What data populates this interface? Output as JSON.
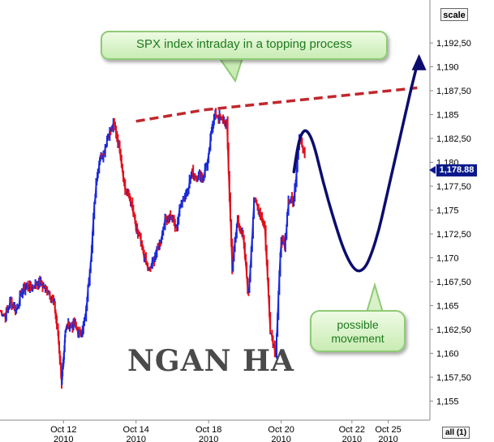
{
  "chart_data": {
    "type": "line",
    "title": "",
    "xlabel": "",
    "ylabel": "",
    "ylim": [
      1153,
      1197
    ],
    "grid": false,
    "y_ticks": [
      1155,
      1157.5,
      1160,
      1162.5,
      1165,
      1167.5,
      1170,
      1172.5,
      1175,
      1177.5,
      1180,
      1182.5,
      1185,
      1187.5,
      1190,
      1192.5
    ],
    "y_tick_labels": [
      "1,155",
      "1,157,50",
      "1,160",
      "1,162,50",
      "1,165",
      "1,167,50",
      "1,170",
      "1,172,50",
      "1,175",
      "1,177,50",
      "1,180",
      "1,182,50",
      "1,185",
      "1,187,50",
      "1,190",
      "1,192,50"
    ],
    "x_ticks": [
      {
        "label": "Oct 12",
        "year": "2010",
        "pos": 1
      },
      {
        "label": "Oct 14",
        "year": "2010",
        "pos": 3
      },
      {
        "label": "Oct 18",
        "year": "2010",
        "pos": 5
      },
      {
        "label": "Oct 20",
        "year": "2010",
        "pos": 7
      },
      {
        "label": "Oct 22",
        "year": "2010",
        "pos": 8.95
      },
      {
        "label": "Oct 25",
        "year": "2010",
        "pos": 9.95
      }
    ],
    "x_range": [
      -0.75,
      11.1
    ],
    "series": [
      {
        "x": [
          -0.75,
          -0.6,
          -0.45,
          -0.3,
          -0.15,
          0,
          0.15,
          0.3,
          0.45,
          0.6,
          0.75,
          0.85,
          0.95,
          1.0,
          1.05,
          1.15,
          1.3,
          1.45,
          1.6,
          1.75,
          1.9,
          2.0,
          2.1,
          2.25,
          2.4,
          2.55,
          2.7,
          2.85,
          3.0,
          3.1,
          3.2,
          3.35,
          3.5,
          3.65,
          3.8,
          3.95,
          4.1,
          4.25,
          4.4,
          4.55,
          4.7,
          4.85,
          5.0,
          5.1,
          5.2,
          5.35,
          5.5,
          5.65,
          5.8,
          5.95,
          6.1,
          6.25,
          6.4,
          6.55,
          6.7,
          6.85,
          7.0,
          7.1,
          7.2,
          7.35,
          7.5,
          7.65
        ],
        "y": [
          1164.5,
          1164,
          1165.5,
          1164.5,
          1166.5,
          1167,
          1167,
          1167.5,
          1167,
          1166.5,
          1165,
          1162,
          1157,
          1159,
          1162.5,
          1163,
          1163,
          1162,
          1163.5,
          1170,
          1178,
          1180.5,
          1181,
          1183,
          1184,
          1181.5,
          1177,
          1176,
          1173,
          1172,
          1170.5,
          1168.5,
          1170,
          1171.5,
          1174,
          1174.5,
          1173,
          1176,
          1177,
          1179,
          1178.5,
          1178.5,
          1180.5,
          1184,
          1185,
          1184.5,
          1184,
          1169,
          1174,
          1172,
          1166,
          1176,
          1175,
          1173,
          1162.5,
          1160,
          1172,
          1171,
          1176,
          1176,
          1183,
          1180.5
        ]
      }
    ],
    "current_price": "1,178.88",
    "annotations": {
      "title_callout": "SPX index intraday in a topping process",
      "movement_callout": "possible movement",
      "resistance_line": {
        "x": [
          3.0,
          4.9
        ],
        "y": [
          1184.3,
          1185.5
        ],
        "color": "#c0282d"
      },
      "projection_line": {
        "x": [
          4.9,
          10.75
        ],
        "y": [
          1185.5,
          1187.8
        ],
        "color": "#c0282d"
      },
      "possible_path": {
        "x": [
          7.35,
          7.45,
          7.55,
          7.7,
          7.9,
          8.15,
          8.45,
          8.75,
          9.05,
          9.3,
          9.5,
          9.7,
          9.85,
          10.0,
          10.15,
          10.3,
          10.45,
          10.6,
          10.8
        ],
        "y": [
          1179,
          1181.5,
          1183,
          1183.5,
          1182,
          1178,
          1174,
          1170.5,
          1168.5,
          1168.8,
          1170.5,
          1173,
          1175.5,
          1178,
          1180.5,
          1183,
          1185.5,
          1188,
          1191
        ],
        "color": "#0c0d6e"
      }
    }
  },
  "controls": {
    "scale_label": "scale",
    "all_label": "all (1)"
  },
  "watermark": "NGAN HA",
  "colors": {
    "up": "#1a2ad8",
    "down": "#e0101c",
    "path": "#0c0d6e",
    "resistance": "#c0282d",
    "callout_text": "#1d7a1d"
  }
}
